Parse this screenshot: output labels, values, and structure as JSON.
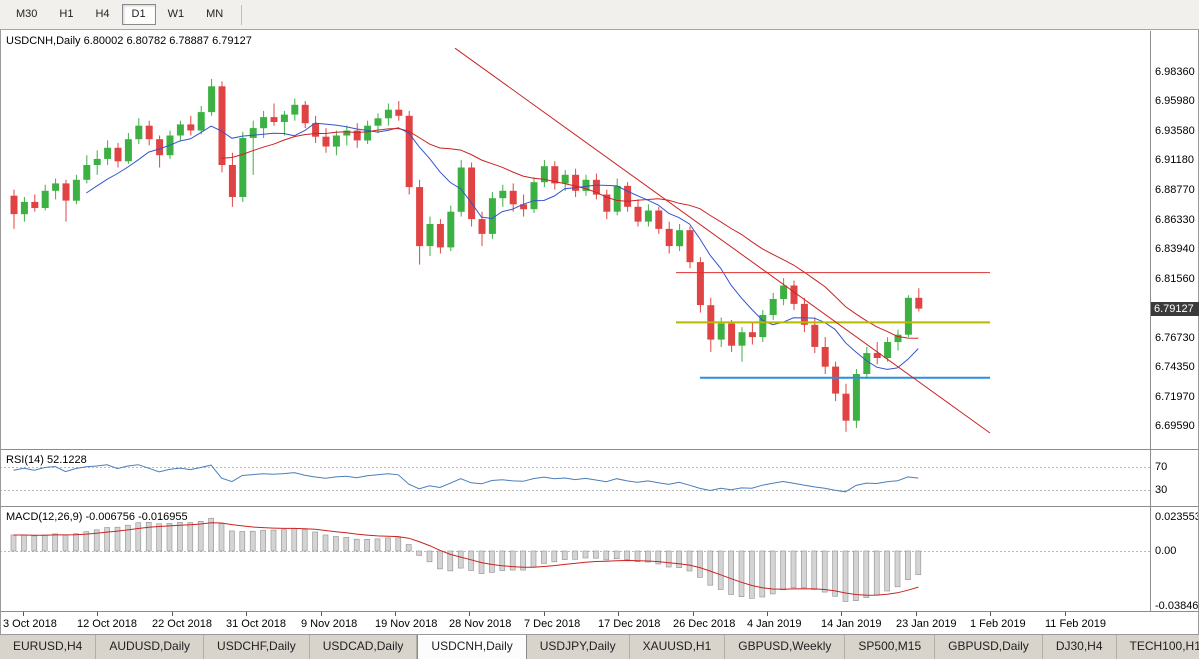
{
  "toolbar": {
    "timeframes": [
      {
        "label": "M30",
        "active": false
      },
      {
        "label": "H1",
        "active": false
      },
      {
        "label": "H4",
        "active": false
      },
      {
        "label": "D1",
        "active": true
      },
      {
        "label": "W1",
        "active": false
      },
      {
        "label": "MN",
        "active": false
      }
    ]
  },
  "chart": {
    "title": "USDCNH,Daily",
    "ohlc_text": "6.80002 6.80782 6.78887 6.79127",
    "open": "6.80002",
    "high": "6.80782",
    "low": "6.78887",
    "close": "6.79127",
    "price_badge": "6.79127",
    "price_axis_labels": [
      {
        "text": "6.98360",
        "value": 6.9836
      },
      {
        "text": "6.95980",
        "value": 6.9598
      },
      {
        "text": "6.93580",
        "value": 6.9358
      },
      {
        "text": "6.91180",
        "value": 6.9118
      },
      {
        "text": "6.88770",
        "value": 6.8877
      },
      {
        "text": "6.86330",
        "value": 6.8633
      },
      {
        "text": "6.83940",
        "value": 6.8394
      },
      {
        "text": "6.81560",
        "value": 6.8156
      },
      {
        "text": "6.76730",
        "value": 6.7673
      },
      {
        "text": "6.74350",
        "value": 6.7435
      },
      {
        "text": "6.71970",
        "value": 6.7197
      },
      {
        "text": "6.69590",
        "value": 6.6959
      }
    ],
    "date_axis_labels": [
      "3 Oct 2018",
      "12 Oct 2018",
      "22 Oct 2018",
      "31 Oct 2018",
      "9 Nov 2018",
      "19 Nov 2018",
      "28 Nov 2018",
      "7 Dec 2018",
      "17 Dec 2018",
      "26 Dec 2018",
      "4 Jan 2019",
      "14 Jan 2019",
      "23 Jan 2019",
      "1 Feb 2019",
      "11 Feb 2019"
    ]
  },
  "rsi_panel": {
    "title": "RSI(14) 52.1228",
    "upper_label": "70",
    "lower_label": "30"
  },
  "macd_panel": {
    "title": "MACD(12,26,9) -0.006756 -0.016955",
    "max_label": "0.0235534",
    "zero_label": "0.00",
    "min_label": "-0.038466"
  },
  "tabs": [
    {
      "label": "EURUSD,H4",
      "active": false
    },
    {
      "label": "AUDUSD,Daily",
      "active": false
    },
    {
      "label": "USDCHF,Daily",
      "active": false
    },
    {
      "label": "USDCAD,Daily",
      "active": false
    },
    {
      "label": "USDCNH,Daily",
      "active": true
    },
    {
      "label": "USDJPY,Daily",
      "active": false
    },
    {
      "label": "XAUUSD,H1",
      "active": false
    },
    {
      "label": "GBPUSD,Weekly",
      "active": false
    },
    {
      "label": "SP500,M15",
      "active": false
    },
    {
      "label": "GBPUSD,Daily",
      "active": false
    },
    {
      "label": "DJ30,H4",
      "active": false
    },
    {
      "label": "TECH100,H1",
      "active": false
    }
  ],
  "chart_data": {
    "type": "candlestick",
    "title": "USDCNH,Daily",
    "symbol": "USDCNH",
    "timeframe": "Daily",
    "ylim": [
      6.6959,
      6.9836
    ],
    "x_labels": [
      "3 Oct 2018",
      "12 Oct 2018",
      "22 Oct 2018",
      "31 Oct 2018",
      "9 Nov 2018",
      "19 Nov 2018",
      "28 Nov 2018",
      "7 Dec 2018",
      "17 Dec 2018",
      "26 Dec 2018",
      "4 Jan 2019",
      "14 Jan 2019",
      "23 Jan 2019",
      "1 Feb 2019",
      "11 Feb 2019"
    ],
    "current_ohlc": [
      6.80002,
      6.80782,
      6.78887,
      6.79127
    ],
    "candles_ohlc": [
      [
        6.883,
        6.888,
        6.856,
        6.868
      ],
      [
        6.868,
        6.882,
        6.862,
        6.878
      ],
      [
        6.878,
        6.884,
        6.87,
        6.873
      ],
      [
        6.873,
        6.892,
        6.871,
        6.887
      ],
      [
        6.887,
        6.897,
        6.88,
        6.893
      ],
      [
        6.893,
        6.896,
        6.862,
        6.879
      ],
      [
        6.879,
        6.9,
        6.876,
        6.896
      ],
      [
        6.896,
        6.916,
        6.893,
        6.908
      ],
      [
        6.908,
        6.92,
        6.9,
        6.913
      ],
      [
        6.913,
        6.928,
        6.908,
        6.922
      ],
      [
        6.922,
        6.926,
        6.906,
        6.911
      ],
      [
        6.911,
        6.934,
        6.909,
        6.929
      ],
      [
        6.929,
        6.946,
        6.925,
        6.94
      ],
      [
        6.94,
        6.944,
        6.924,
        6.929
      ],
      [
        6.929,
        6.932,
        6.906,
        6.916
      ],
      [
        6.916,
        6.936,
        6.913,
        6.932
      ],
      [
        6.932,
        6.944,
        6.928,
        6.941
      ],
      [
        6.941,
        6.948,
        6.932,
        6.936
      ],
      [
        6.936,
        6.956,
        6.933,
        6.951
      ],
      [
        6.951,
        6.978,
        6.948,
        6.972
      ],
      [
        6.972,
        6.976,
        6.902,
        6.908
      ],
      [
        6.908,
        6.918,
        6.874,
        6.882
      ],
      [
        6.882,
        6.935,
        6.878,
        6.93
      ],
      [
        6.93,
        6.944,
        6.9,
        6.938
      ],
      [
        6.938,
        6.952,
        6.93,
        6.947
      ],
      [
        6.947,
        6.958,
        6.94,
        6.943
      ],
      [
        6.943,
        6.952,
        6.932,
        6.949
      ],
      [
        6.949,
        6.962,
        6.944,
        6.957
      ],
      [
        6.957,
        6.96,
        6.938,
        6.942
      ],
      [
        6.942,
        6.948,
        6.926,
        6.931
      ],
      [
        6.931,
        6.938,
        6.918,
        6.923
      ],
      [
        6.923,
        6.936,
        6.916,
        6.932
      ],
      [
        6.932,
        6.94,
        6.924,
        6.936
      ],
      [
        6.936,
        6.942,
        6.922,
        6.928
      ],
      [
        6.928,
        6.944,
        6.925,
        6.94
      ],
      [
        6.94,
        6.95,
        6.934,
        6.946
      ],
      [
        6.946,
        6.958,
        6.94,
        6.953
      ],
      [
        6.953,
        6.96,
        6.944,
        6.948
      ],
      [
        6.948,
        6.952,
        6.884,
        6.89
      ],
      [
        6.89,
        6.896,
        6.827,
        6.842
      ],
      [
        6.842,
        6.866,
        6.834,
        6.86
      ],
      [
        6.86,
        6.864,
        6.836,
        6.841
      ],
      [
        6.841,
        6.875,
        6.838,
        6.87
      ],
      [
        6.87,
        6.912,
        6.866,
        6.906
      ],
      [
        6.906,
        6.91,
        6.858,
        6.864
      ],
      [
        6.864,
        6.87,
        6.842,
        6.852
      ],
      [
        6.852,
        6.886,
        6.848,
        6.881
      ],
      [
        6.881,
        6.892,
        6.874,
        6.887
      ],
      [
        6.887,
        6.893,
        6.87,
        6.876
      ],
      [
        6.876,
        6.884,
        6.866,
        6.872
      ],
      [
        6.872,
        6.898,
        6.869,
        6.894
      ],
      [
        6.894,
        6.912,
        6.89,
        6.907
      ],
      [
        6.907,
        6.911,
        6.888,
        6.893
      ],
      [
        6.893,
        6.904,
        6.887,
        6.9
      ],
      [
        6.9,
        6.905,
        6.882,
        6.887
      ],
      [
        6.887,
        6.9,
        6.883,
        6.896
      ],
      [
        6.896,
        6.901,
        6.88,
        6.884
      ],
      [
        6.884,
        6.888,
        6.864,
        6.87
      ],
      [
        6.87,
        6.897,
        6.867,
        6.891
      ],
      [
        6.891,
        6.894,
        6.87,
        6.874
      ],
      [
        6.874,
        6.88,
        6.858,
        6.862
      ],
      [
        6.862,
        6.876,
        6.858,
        6.871
      ],
      [
        6.871,
        6.874,
        6.852,
        6.856
      ],
      [
        6.856,
        6.862,
        6.836,
        6.842
      ],
      [
        6.842,
        6.86,
        6.838,
        6.855
      ],
      [
        6.855,
        6.858,
        6.824,
        6.829
      ],
      [
        6.829,
        6.833,
        6.788,
        6.794
      ],
      [
        6.794,
        6.8,
        6.756,
        6.766
      ],
      [
        6.766,
        6.784,
        6.76,
        6.779
      ],
      [
        6.779,
        6.782,
        6.756,
        6.761
      ],
      [
        6.761,
        6.776,
        6.748,
        6.772
      ],
      [
        6.772,
        6.78,
        6.762,
        6.768
      ],
      [
        6.768,
        6.79,
        6.764,
        6.786
      ],
      [
        6.786,
        6.804,
        6.782,
        6.799
      ],
      [
        6.799,
        6.816,
        6.794,
        6.81
      ],
      [
        6.81,
        6.814,
        6.79,
        6.795
      ],
      [
        6.795,
        6.8,
        6.772,
        6.778
      ],
      [
        6.778,
        6.784,
        6.755,
        6.76
      ],
      [
        6.76,
        6.768,
        6.738,
        6.744
      ],
      [
        6.744,
        6.748,
        6.716,
        6.722
      ],
      [
        6.722,
        6.73,
        6.691,
        6.7
      ],
      [
        6.7,
        6.742,
        6.694,
        6.738
      ],
      [
        6.738,
        6.76,
        6.734,
        6.755
      ],
      [
        6.755,
        6.764,
        6.746,
        6.751
      ],
      [
        6.751,
        6.768,
        6.748,
        6.764
      ],
      [
        6.764,
        6.774,
        6.757,
        6.77
      ],
      [
        6.77,
        6.802,
        6.768,
        6.8
      ],
      [
        6.80002,
        6.80782,
        6.78887,
        6.79127
      ]
    ],
    "colors": {
      "up": "#3cb043",
      "down": "#e04343",
      "ma_fast": "#3355cc",
      "ma_slow": "#cc2222",
      "rsi": "#4a7ebb",
      "macd_bar_fill": "#d4d4d4",
      "macd_bar_stroke": "#8f8f8f",
      "macd_signal": "#cc2222",
      "grid_dash": "#b8b8b8"
    },
    "overlays": {
      "hlines": [
        {
          "name": "resistance-hline-red",
          "price": 6.8205,
          "x1": 676,
          "x2": 990,
          "color": "#e03030",
          "width": 1
        },
        {
          "name": "pivot-hline-yellow",
          "price": 6.78,
          "x1": 676,
          "x2": 990,
          "color": "#b8b800",
          "width": 2
        },
        {
          "name": "support-hline-blue",
          "price": 6.735,
          "x1": 700,
          "x2": 990,
          "color": "#2a8fdd",
          "width": 2
        }
      ],
      "trendline": {
        "name": "descending-trendline",
        "x1": 455,
        "p1": 7.003,
        "x2": 990,
        "p2": 6.69,
        "color": "#cc2222",
        "width": 1
      },
      "moving_averages": [
        {
          "period": 8,
          "name": "ma-fast-line"
        },
        {
          "period": 21,
          "name": "ma-slow-line"
        }
      ]
    },
    "indicators": {
      "rsi": {
        "period": 14,
        "current": 52.1228,
        "levels": [
          70,
          30
        ]
      },
      "macd": {
        "fast": 12,
        "slow": 26,
        "signal": 9,
        "current_main": -0.006756,
        "current_signal": -0.016955,
        "scale_max": 0.0235534,
        "scale_min": -0.038466
      }
    }
  }
}
